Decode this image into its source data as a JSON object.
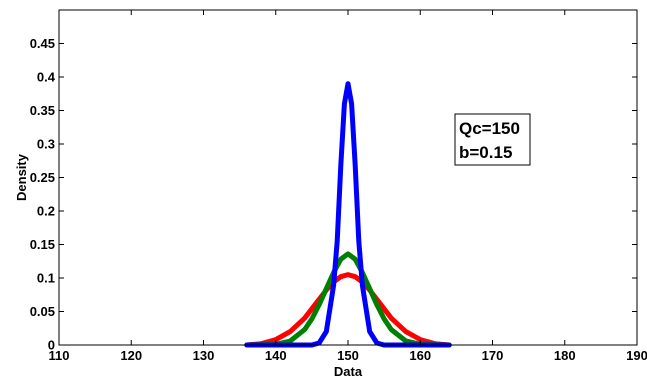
{
  "chart_data": {
    "type": "line",
    "xlabel": "Data",
    "ylabel": "Density",
    "xlim": [
      110,
      190
    ],
    "ylim": [
      0,
      0.5
    ],
    "xticks": [
      110,
      120,
      130,
      140,
      150,
      160,
      170,
      180,
      190
    ],
    "yticks": [
      0,
      0.05,
      0.1,
      0.15,
      0.2,
      0.25,
      0.3,
      0.35,
      0.4,
      0.45
    ],
    "ytick_labels": [
      "0",
      "0.05",
      "0.1",
      "0.15",
      "0.2",
      "0.25",
      "0.3",
      "0.35",
      "0.4",
      "0.45"
    ],
    "grid": false,
    "annotation": [
      "Qc=150",
      "b=0.15"
    ],
    "series": [
      {
        "color": "#ff0000",
        "x": [
          136,
          138,
          140,
          142,
          144,
          146,
          147,
          148,
          149,
          150,
          151,
          152,
          153,
          154,
          156,
          158,
          160,
          162,
          164
        ],
        "y": [
          0.0,
          0.002,
          0.008,
          0.02,
          0.04,
          0.068,
          0.082,
          0.094,
          0.102,
          0.105,
          0.102,
          0.094,
          0.082,
          0.068,
          0.04,
          0.02,
          0.008,
          0.002,
          0.0
        ]
      },
      {
        "color": "#008000",
        "x": [
          136,
          140,
          142,
          144,
          145,
          146,
          147,
          148,
          149,
          150,
          151,
          152,
          153,
          154,
          155,
          156,
          158,
          160,
          164
        ],
        "y": [
          0.0,
          0.001,
          0.006,
          0.023,
          0.039,
          0.06,
          0.084,
          0.108,
          0.128,
          0.136,
          0.128,
          0.108,
          0.084,
          0.06,
          0.039,
          0.023,
          0.006,
          0.001,
          0.0
        ]
      },
      {
        "color": "#0000ff",
        "x": [
          136,
          144,
          145,
          146,
          147,
          148,
          148.5,
          149,
          149.5,
          150,
          150.5,
          151,
          151.5,
          152,
          153,
          154,
          155,
          156,
          164
        ],
        "y": [
          0.0,
          0.0,
          0.0,
          0.003,
          0.02,
          0.089,
          0.155,
          0.268,
          0.36,
          0.39,
          0.36,
          0.268,
          0.155,
          0.089,
          0.02,
          0.003,
          0.0,
          0.0,
          0.0
        ]
      }
    ]
  }
}
